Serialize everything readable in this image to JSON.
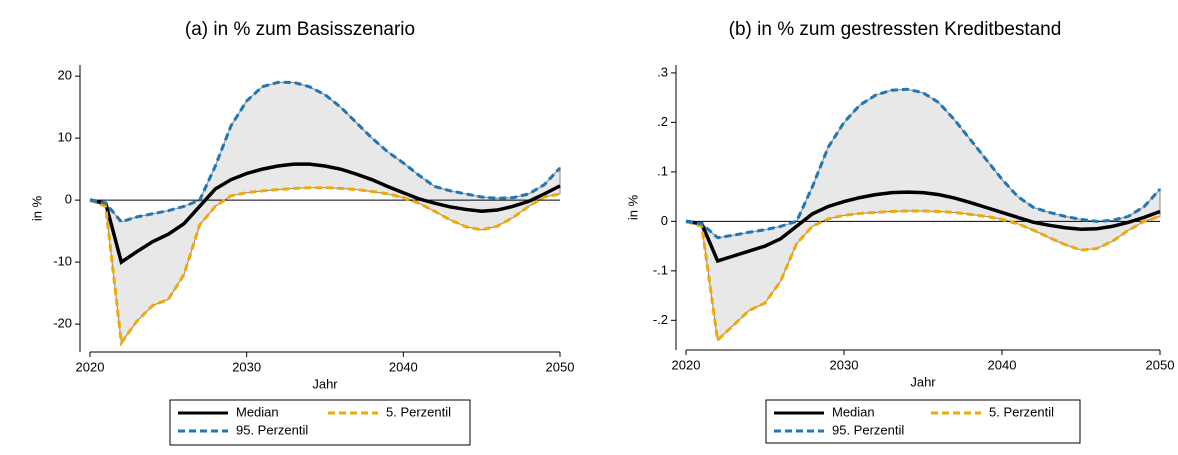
{
  "chart_data": [
    {
      "type": "line",
      "title": "(a)  in % zum Basisszenario",
      "x_label": "Jahr",
      "y_label": "in %",
      "x": [
        2020,
        2021,
        2022,
        2023,
        2024,
        2025,
        2026,
        2027,
        2028,
        2029,
        2030,
        2031,
        2032,
        2033,
        2034,
        2035,
        2036,
        2037,
        2038,
        2039,
        2040,
        2041,
        2042,
        2043,
        2044,
        2045,
        2046,
        2047,
        2048,
        2049,
        2050
      ],
      "xlim": [
        2020,
        2050
      ],
      "xticks": [
        2020,
        2030,
        2040,
        2050
      ],
      "ylim": [
        -24.5,
        21.8
      ],
      "yticks": [
        -20,
        -10,
        0,
        10,
        20
      ],
      "hline": 0,
      "band_color": "#e8e8e8",
      "series": [
        {
          "name": "Median",
          "color": "#000000",
          "dash": false,
          "values": [
            0,
            -0.5,
            -10,
            -8.3,
            -6.7,
            -5.5,
            -3.8,
            -1,
            1.8,
            3.3,
            4.3,
            5,
            5.5,
            5.8,
            5.8,
            5.5,
            5,
            4.2,
            3.3,
            2.2,
            1.2,
            0.2,
            -0.5,
            -1.1,
            -1.5,
            -1.8,
            -1.6,
            -1,
            -0.2,
            1,
            2.3
          ]
        },
        {
          "name": "5. Perzentil",
          "color": "#f2a900",
          "dash": true,
          "values": [
            0,
            -1,
            -23,
            -19.5,
            -17,
            -16,
            -12,
            -4,
            -1,
            0.7,
            1.2,
            1.5,
            1.7,
            1.9,
            2,
            2,
            1.9,
            1.7,
            1.4,
            1,
            0.4,
            -0.5,
            -1.8,
            -3.2,
            -4.3,
            -4.8,
            -4.2,
            -2.8,
            -1,
            0.5,
            1
          ]
        },
        {
          "name": "95. Perzentil",
          "color": "#1f77b4",
          "dash": true,
          "values": [
            0,
            -0.5,
            -3.5,
            -2.7,
            -2.2,
            -1.7,
            -1,
            0,
            5.5,
            12,
            16,
            18.3,
            19,
            19,
            18.3,
            17,
            15,
            12.5,
            10,
            7.8,
            6,
            4,
            2.2,
            1.5,
            1,
            0.5,
            0.3,
            0.4,
            1,
            2.5,
            5.2
          ]
        }
      ]
    },
    {
      "type": "line",
      "title": "(b)  in % zum gestressten Kreditbestand",
      "x_label": "Jahr",
      "y_label": "in %",
      "x": [
        2020,
        2021,
        2022,
        2023,
        2024,
        2025,
        2026,
        2027,
        2028,
        2029,
        2030,
        2031,
        2032,
        2033,
        2034,
        2035,
        2036,
        2037,
        2038,
        2039,
        2040,
        2041,
        2042,
        2043,
        2044,
        2045,
        2046,
        2047,
        2048,
        2049,
        2050
      ],
      "xlim": [
        2020,
        2050
      ],
      "xticks": [
        2020,
        2030,
        2040,
        2050
      ],
      "ylim": [
        -0.26,
        0.316
      ],
      "yticks": [
        {
          "value": -0.2,
          "label": "-.2"
        },
        {
          "value": -0.1,
          "label": "-.1"
        },
        0,
        {
          "value": 0.1,
          "label": ".1"
        },
        {
          "value": 0.2,
          "label": ".2"
        },
        {
          "value": 0.3,
          "label": ".3"
        }
      ],
      "hline": 0,
      "band_color": "#e8e8e8",
      "series": [
        {
          "name": "Median",
          "color": "#000000",
          "dash": false,
          "values": [
            0,
            -0.005,
            -0.08,
            -0.07,
            -0.06,
            -0.05,
            -0.035,
            -0.01,
            0.015,
            0.03,
            0.04,
            0.048,
            0.054,
            0.058,
            0.059,
            0.058,
            0.054,
            0.047,
            0.038,
            0.028,
            0.018,
            0.008,
            -0.002,
            -0.008,
            -0.013,
            -0.016,
            -0.015,
            -0.01,
            -0.002,
            0.008,
            0.02
          ]
        },
        {
          "name": "5. Perzentil",
          "color": "#f2a900",
          "dash": true,
          "values": [
            0,
            -0.01,
            -0.24,
            -0.21,
            -0.18,
            -0.165,
            -0.12,
            -0.045,
            -0.01,
            0.005,
            0.012,
            0.016,
            0.018,
            0.02,
            0.021,
            0.021,
            0.02,
            0.018,
            0.014,
            0.01,
            0.004,
            -0.005,
            -0.018,
            -0.033,
            -0.047,
            -0.058,
            -0.055,
            -0.04,
            -0.018,
            0,
            0.01
          ]
        },
        {
          "name": "95. Perzentil",
          "color": "#1f77b4",
          "dash": true,
          "values": [
            0,
            -0.005,
            -0.033,
            -0.028,
            -0.022,
            -0.017,
            -0.01,
            0,
            0.07,
            0.15,
            0.2,
            0.235,
            0.255,
            0.265,
            0.267,
            0.26,
            0.24,
            0.205,
            0.165,
            0.125,
            0.085,
            0.05,
            0.028,
            0.018,
            0.01,
            0.004,
            0,
            0.002,
            0.01,
            0.03,
            0.065
          ]
        }
      ]
    }
  ]
}
